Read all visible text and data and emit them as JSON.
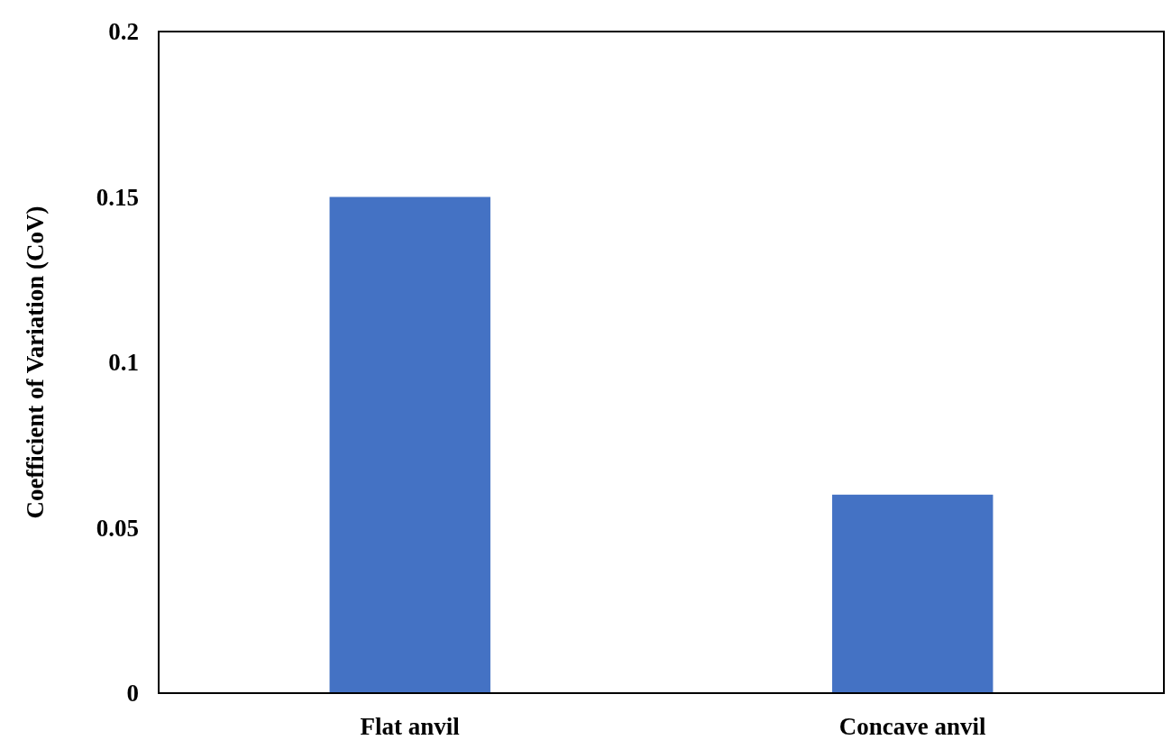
{
  "chart_data": {
    "type": "bar",
    "ylabel": "Coefficient of Variation (CoV)",
    "categories": [
      "Flat anvil",
      "Concave anvil"
    ],
    "values": [
      0.15,
      0.06
    ],
    "color": "#4472c4",
    "ylim": [
      0,
      0.2
    ],
    "yticks": [
      0,
      0.05,
      0.1,
      0.15,
      0.2
    ],
    "grid": false
  }
}
